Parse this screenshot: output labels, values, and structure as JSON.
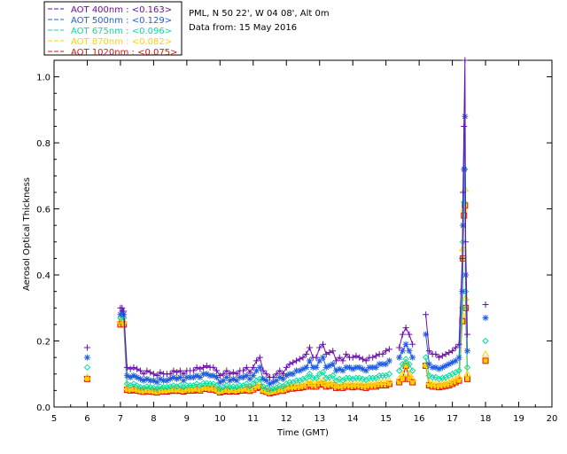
{
  "legend": [
    {
      "label": "AOT  400nm : <0.163>",
      "color": "#6a0dad"
    },
    {
      "label": "AOT  500nm : <0.129>",
      "color": "#1f5fe0"
    },
    {
      "label": "AOT  675nm : <0.096>",
      "color": "#00e0a0"
    },
    {
      "label": "AOT  870nm : <0.082>",
      "color": "#ffd000"
    },
    {
      "label": "AOT 1020nm : <0.075>",
      "color": "#e01010"
    }
  ],
  "info": {
    "location": "PML, N 50 22', W 04 08', Alt 0m",
    "date": "Data from: 15 May 2016"
  },
  "chart_data": {
    "type": "line",
    "xlabel": "Time (GMT)",
    "ylabel": "Aerosol Optical Thickness",
    "xlim": [
      5,
      20
    ],
    "ylim": [
      0.0,
      1.05
    ],
    "xticks": [
      "5",
      "6",
      "7",
      "8",
      "9",
      "10",
      "11",
      "12",
      "13",
      "14",
      "15",
      "16",
      "17",
      "18",
      "19",
      "20"
    ],
    "yticks": [
      "0.0",
      "0.2",
      "0.4",
      "0.6",
      "0.8",
      "1.0"
    ],
    "x": [
      6.0,
      7.0,
      7.05,
      7.1,
      7.2,
      7.3,
      7.4,
      7.5,
      7.6,
      7.7,
      7.8,
      7.9,
      8.0,
      8.1,
      8.2,
      8.3,
      8.4,
      8.5,
      8.6,
      8.7,
      8.8,
      8.9,
      9.0,
      9.1,
      9.2,
      9.3,
      9.4,
      9.5,
      9.6,
      9.7,
      9.8,
      9.9,
      10.0,
      10.1,
      10.2,
      10.3,
      10.4,
      10.5,
      10.6,
      10.7,
      10.8,
      10.9,
      11.0,
      11.1,
      11.2,
      11.3,
      11.4,
      11.5,
      11.6,
      11.7,
      11.8,
      11.9,
      12.0,
      12.1,
      12.2,
      12.3,
      12.4,
      12.5,
      12.6,
      12.7,
      12.8,
      12.9,
      13.0,
      13.1,
      13.2,
      13.3,
      13.4,
      13.5,
      13.6,
      13.7,
      13.8,
      13.9,
      14.0,
      14.1,
      14.2,
      14.3,
      14.4,
      14.5,
      14.6,
      14.7,
      14.8,
      14.9,
      15.0,
      15.1,
      15.4,
      15.5,
      15.6,
      15.7,
      15.8,
      16.2,
      16.3,
      16.4,
      16.5,
      16.6,
      16.7,
      16.8,
      16.9,
      17.0,
      17.1,
      17.2,
      17.3,
      17.32,
      17.35,
      17.38,
      17.4,
      17.45,
      18.0
    ],
    "series": [
      {
        "name": "AOT  400nm",
        "marker": "plus",
        "values": [
          0.18,
          0.3,
          0.3,
          0.29,
          0.12,
          0.115,
          0.12,
          0.115,
          0.11,
          0.1,
          0.11,
          0.105,
          0.1,
          0.095,
          0.105,
          0.1,
          0.1,
          0.1,
          0.11,
          0.105,
          0.11,
          0.1,
          0.11,
          0.11,
          0.11,
          0.12,
          0.115,
          0.12,
          0.125,
          0.12,
          0.12,
          0.11,
          0.095,
          0.1,
          0.11,
          0.1,
          0.105,
          0.1,
          0.11,
          0.11,
          0.12,
          0.105,
          0.12,
          0.14,
          0.15,
          0.11,
          0.1,
          0.09,
          0.09,
          0.1,
          0.11,
          0.1,
          0.12,
          0.13,
          0.135,
          0.14,
          0.145,
          0.15,
          0.16,
          0.18,
          0.15,
          0.15,
          0.18,
          0.19,
          0.16,
          0.165,
          0.17,
          0.14,
          0.15,
          0.14,
          0.16,
          0.15,
          0.15,
          0.155,
          0.15,
          0.145,
          0.14,
          0.15,
          0.15,
          0.155,
          0.16,
          0.16,
          0.17,
          0.175,
          0.18,
          0.22,
          0.24,
          0.22,
          0.19,
          0.28,
          0.17,
          0.16,
          0.16,
          0.15,
          0.155,
          0.16,
          0.165,
          0.17,
          0.18,
          0.19,
          0.45,
          0.65,
          0.85,
          1.05,
          0.5,
          0.22,
          0.31
        ]
      },
      {
        "name": "AOT  500nm",
        "marker": "star",
        "values": [
          0.15,
          0.28,
          0.29,
          0.28,
          0.095,
          0.09,
          0.095,
          0.09,
          0.085,
          0.08,
          0.085,
          0.08,
          0.08,
          0.075,
          0.085,
          0.08,
          0.08,
          0.085,
          0.09,
          0.085,
          0.09,
          0.08,
          0.09,
          0.09,
          0.09,
          0.095,
          0.09,
          0.1,
          0.1,
          0.095,
          0.095,
          0.09,
          0.075,
          0.08,
          0.09,
          0.08,
          0.085,
          0.08,
          0.09,
          0.09,
          0.095,
          0.085,
          0.095,
          0.11,
          0.12,
          0.085,
          0.08,
          0.07,
          0.075,
          0.08,
          0.09,
          0.085,
          0.095,
          0.1,
          0.1,
          0.11,
          0.11,
          0.115,
          0.12,
          0.14,
          0.12,
          0.12,
          0.14,
          0.15,
          0.12,
          0.125,
          0.13,
          0.11,
          0.115,
          0.11,
          0.12,
          0.12,
          0.115,
          0.12,
          0.12,
          0.115,
          0.11,
          0.12,
          0.12,
          0.12,
          0.13,
          0.13,
          0.13,
          0.14,
          0.15,
          0.17,
          0.19,
          0.17,
          0.15,
          0.22,
          0.13,
          0.12,
          0.12,
          0.115,
          0.12,
          0.125,
          0.13,
          0.135,
          0.14,
          0.15,
          0.35,
          0.55,
          0.72,
          0.88,
          0.4,
          0.17,
          0.27
        ]
      },
      {
        "name": "AOT  675nm",
        "marker": "diamond",
        "values": [
          0.12,
          0.27,
          0.28,
          0.27,
          0.07,
          0.065,
          0.07,
          0.065,
          0.06,
          0.058,
          0.062,
          0.06,
          0.058,
          0.055,
          0.062,
          0.06,
          0.06,
          0.062,
          0.065,
          0.062,
          0.065,
          0.06,
          0.065,
          0.065,
          0.065,
          0.07,
          0.065,
          0.072,
          0.072,
          0.07,
          0.07,
          0.065,
          0.055,
          0.06,
          0.065,
          0.06,
          0.062,
          0.06,
          0.065,
          0.065,
          0.07,
          0.062,
          0.07,
          0.08,
          0.085,
          0.062,
          0.058,
          0.052,
          0.055,
          0.058,
          0.065,
          0.062,
          0.07,
          0.075,
          0.075,
          0.08,
          0.08,
          0.085,
          0.088,
          0.1,
          0.088,
          0.088,
          0.1,
          0.105,
          0.088,
          0.09,
          0.095,
          0.08,
          0.085,
          0.08,
          0.088,
          0.088,
          0.085,
          0.088,
          0.088,
          0.085,
          0.082,
          0.088,
          0.088,
          0.088,
          0.095,
          0.095,
          0.095,
          0.1,
          0.11,
          0.13,
          0.145,
          0.13,
          0.11,
          0.15,
          0.095,
          0.09,
          0.09,
          0.085,
          0.088,
          0.09,
          0.095,
          0.1,
          0.105,
          0.11,
          0.3,
          0.5,
          0.62,
          0.72,
          0.35,
          0.12,
          0.2
        ]
      },
      {
        "name": "AOT  870nm",
        "marker": "triangle",
        "values": [
          0.09,
          0.26,
          0.27,
          0.26,
          0.058,
          0.055,
          0.058,
          0.055,
          0.052,
          0.05,
          0.053,
          0.051,
          0.05,
          0.048,
          0.053,
          0.051,
          0.051,
          0.053,
          0.055,
          0.053,
          0.055,
          0.051,
          0.055,
          0.055,
          0.055,
          0.058,
          0.055,
          0.06,
          0.06,
          0.058,
          0.058,
          0.055,
          0.048,
          0.051,
          0.055,
          0.051,
          0.053,
          0.051,
          0.055,
          0.055,
          0.058,
          0.053,
          0.058,
          0.065,
          0.068,
          0.053,
          0.05,
          0.046,
          0.048,
          0.05,
          0.055,
          0.053,
          0.058,
          0.062,
          0.062,
          0.065,
          0.065,
          0.068,
          0.07,
          0.078,
          0.07,
          0.07,
          0.078,
          0.08,
          0.07,
          0.072,
          0.075,
          0.065,
          0.068,
          0.065,
          0.07,
          0.07,
          0.068,
          0.07,
          0.07,
          0.068,
          0.066,
          0.07,
          0.07,
          0.07,
          0.075,
          0.075,
          0.075,
          0.08,
          0.085,
          0.1,
          0.13,
          0.1,
          0.085,
          0.13,
          0.075,
          0.07,
          0.07,
          0.068,
          0.07,
          0.072,
          0.075,
          0.08,
          0.085,
          0.09,
          0.28,
          0.48,
          0.6,
          0.66,
          0.33,
          0.1,
          0.16
        ]
      },
      {
        "name": "AOT 1020nm",
        "marker": "square",
        "values": [
          0.085,
          0.25,
          0.26,
          0.25,
          0.052,
          0.05,
          0.052,
          0.05,
          0.048,
          0.046,
          0.049,
          0.047,
          0.046,
          0.044,
          0.049,
          0.047,
          0.047,
          0.049,
          0.05,
          0.049,
          0.05,
          0.047,
          0.05,
          0.05,
          0.05,
          0.053,
          0.05,
          0.055,
          0.055,
          0.053,
          0.053,
          0.05,
          0.044,
          0.047,
          0.05,
          0.047,
          0.049,
          0.047,
          0.05,
          0.05,
          0.053,
          0.049,
          0.053,
          0.058,
          0.06,
          0.049,
          0.046,
          0.042,
          0.044,
          0.046,
          0.05,
          0.049,
          0.053,
          0.056,
          0.056,
          0.058,
          0.058,
          0.06,
          0.062,
          0.068,
          0.062,
          0.062,
          0.068,
          0.07,
          0.062,
          0.064,
          0.066,
          0.058,
          0.06,
          0.058,
          0.062,
          0.062,
          0.06,
          0.062,
          0.062,
          0.06,
          0.058,
          0.062,
          0.062,
          0.062,
          0.066,
          0.066,
          0.066,
          0.07,
          0.075,
          0.085,
          0.125,
          0.085,
          0.075,
          0.125,
          0.066,
          0.062,
          0.062,
          0.06,
          0.062,
          0.064,
          0.066,
          0.07,
          0.075,
          0.08,
          0.26,
          0.45,
          0.58,
          0.61,
          0.3,
          0.085,
          0.14
        ]
      }
    ]
  }
}
